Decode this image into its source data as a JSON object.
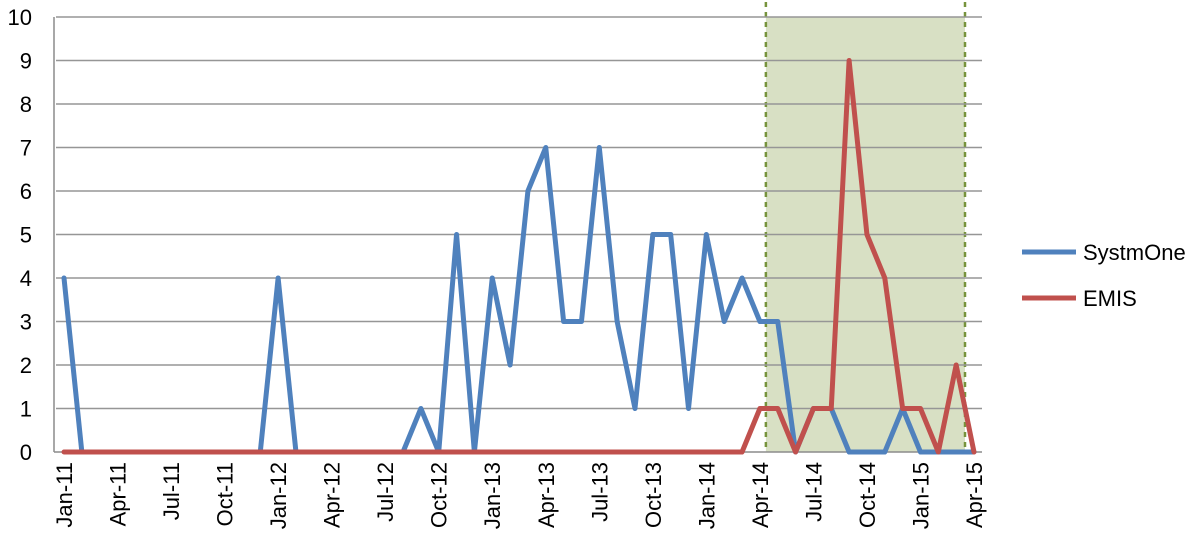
{
  "chart_data": {
    "type": "line",
    "title": "",
    "xlabel": "",
    "ylabel": "",
    "ylim": [
      0,
      10
    ],
    "yticks": [
      0,
      1,
      2,
      3,
      4,
      5,
      6,
      7,
      8,
      9,
      10
    ],
    "grid": true,
    "legend_position": "right",
    "x": [
      "2011-01",
      "2011-02",
      "2011-03",
      "2011-04",
      "2011-05",
      "2011-06",
      "2011-07",
      "2011-08",
      "2011-09",
      "2011-10",
      "2011-11",
      "2011-12",
      "2012-01",
      "2012-02",
      "2012-03",
      "2012-04",
      "2012-05",
      "2012-06",
      "2012-07",
      "2012-08",
      "2012-09",
      "2012-10",
      "2012-11",
      "2012-12",
      "2013-01",
      "2013-02",
      "2013-03",
      "2013-04",
      "2013-05",
      "2013-06",
      "2013-07",
      "2013-08",
      "2013-09",
      "2013-10",
      "2013-11",
      "2013-12",
      "2014-01",
      "2014-02",
      "2014-03",
      "2014-04",
      "2014-05",
      "2014-06",
      "2014-07",
      "2014-08",
      "2014-09",
      "2014-10",
      "2014-11",
      "2014-12",
      "2015-01",
      "2015-02",
      "2015-03",
      "2015-04"
    ],
    "x_tick_labels": [
      "Jan-11",
      "Apr-11",
      "Jul-11",
      "Oct-11",
      "Jan-12",
      "Apr-12",
      "Jul-12",
      "Oct-12",
      "Jan-13",
      "Apr-13",
      "Jul-13",
      "Oct-13",
      "Jan-14",
      "Apr-14",
      "Jul-14",
      "Oct-14",
      "Jan-15",
      "Apr-15"
    ],
    "shaded_region": {
      "from": "2014-04",
      "to": "2015-04",
      "color": "#d8e0c4",
      "border_color": "#77933c"
    },
    "series": [
      {
        "name": "SystmOne",
        "color": "#4f81bd",
        "values": [
          4,
          0,
          0,
          0,
          0,
          0,
          0,
          0,
          0,
          0,
          0,
          0,
          4,
          0,
          0,
          0,
          0,
          0,
          0,
          0,
          1,
          0,
          5,
          0,
          4,
          2,
          6,
          7,
          3,
          3,
          7,
          3,
          1,
          5,
          5,
          1,
          5,
          3,
          4,
          3,
          3,
          0,
          1,
          1,
          0,
          0,
          0,
          1,
          0,
          0,
          0,
          0
        ]
      },
      {
        "name": "EMIS",
        "color": "#c0504d",
        "values": [
          0,
          0,
          0,
          0,
          0,
          0,
          0,
          0,
          0,
          0,
          0,
          0,
          0,
          0,
          0,
          0,
          0,
          0,
          0,
          0,
          0,
          0,
          0,
          0,
          0,
          0,
          0,
          0,
          0,
          0,
          0,
          0,
          0,
          0,
          0,
          0,
          0,
          0,
          0,
          1,
          1,
          0,
          1,
          1,
          9,
          5,
          4,
          1,
          1,
          0,
          2,
          0
        ]
      }
    ]
  }
}
